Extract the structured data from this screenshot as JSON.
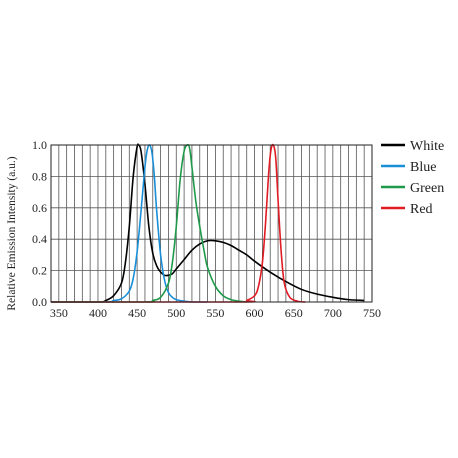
{
  "chart_data": {
    "type": "line",
    "title": "",
    "xlabel": "",
    "ylabel": "Relative Emission Intensity (a.u.)",
    "xlim": [
      340,
      750
    ],
    "ylim": [
      0,
      1.0
    ],
    "x_ticks": [
      350,
      400,
      450,
      500,
      550,
      600,
      650,
      700,
      750
    ],
    "y_ticks": [
      0.0,
      0.2,
      0.4,
      0.6,
      0.8,
      1.0
    ],
    "x_tick_labels": [
      "350",
      "400",
      "450",
      "500",
      "550",
      "600",
      "650",
      "700",
      "750"
    ],
    "y_tick_labels": [
      "0.0",
      "0.2",
      "0.4",
      "0.6",
      "0.8",
      "1.0"
    ],
    "x_grid_step": 10,
    "grid": true,
    "legend_position": "right",
    "series": [
      {
        "name": "White",
        "color": "#000000",
        "x": [
          340,
          400,
          410,
          420,
          430,
          435,
          440,
          445,
          450,
          452,
          455,
          460,
          465,
          470,
          475,
          480,
          485,
          490,
          495,
          500,
          510,
          520,
          530,
          540,
          550,
          560,
          570,
          580,
          590,
          600,
          620,
          640,
          660,
          680,
          700,
          720,
          740
        ],
        "y": [
          0.0,
          0.0,
          0.01,
          0.04,
          0.12,
          0.25,
          0.48,
          0.8,
          0.99,
          1.0,
          0.96,
          0.75,
          0.48,
          0.31,
          0.23,
          0.19,
          0.17,
          0.17,
          0.18,
          0.21,
          0.27,
          0.33,
          0.37,
          0.39,
          0.39,
          0.38,
          0.36,
          0.33,
          0.3,
          0.26,
          0.19,
          0.13,
          0.08,
          0.05,
          0.03,
          0.015,
          0.01
        ]
      },
      {
        "name": "Blue",
        "color": "#1a8fd8",
        "x": [
          340,
          410,
          420,
          430,
          440,
          445,
          450,
          455,
          460,
          463,
          466,
          469,
          472,
          475,
          480,
          485,
          490,
          495,
          500,
          510,
          520,
          540
        ],
        "y": [
          0.0,
          0.0,
          0.01,
          0.02,
          0.07,
          0.15,
          0.32,
          0.58,
          0.86,
          0.97,
          1.0,
          0.95,
          0.8,
          0.58,
          0.3,
          0.14,
          0.06,
          0.03,
          0.015,
          0.005,
          0.0,
          0.0
        ]
      },
      {
        "name": "Green",
        "color": "#1f9a4a",
        "x": [
          340,
          460,
          470,
          480,
          490,
          495,
          500,
          505,
          510,
          514,
          517,
          520,
          525,
          530,
          535,
          540,
          550,
          560,
          570,
          580,
          590
        ],
        "y": [
          0.0,
          0.0,
          0.01,
          0.03,
          0.12,
          0.25,
          0.48,
          0.78,
          0.96,
          1.0,
          0.98,
          0.86,
          0.64,
          0.48,
          0.34,
          0.22,
          0.1,
          0.04,
          0.015,
          0.005,
          0.0
        ]
      },
      {
        "name": "Red",
        "color": "#e01b24",
        "x": [
          340,
          580,
          590,
          600,
          605,
          610,
          614,
          618,
          621,
          624,
          627,
          630,
          634,
          638,
          645,
          655,
          665
        ],
        "y": [
          0.0,
          0.0,
          0.01,
          0.04,
          0.1,
          0.25,
          0.5,
          0.82,
          0.97,
          1.0,
          0.92,
          0.65,
          0.32,
          0.12,
          0.03,
          0.005,
          0.0
        ]
      }
    ]
  }
}
